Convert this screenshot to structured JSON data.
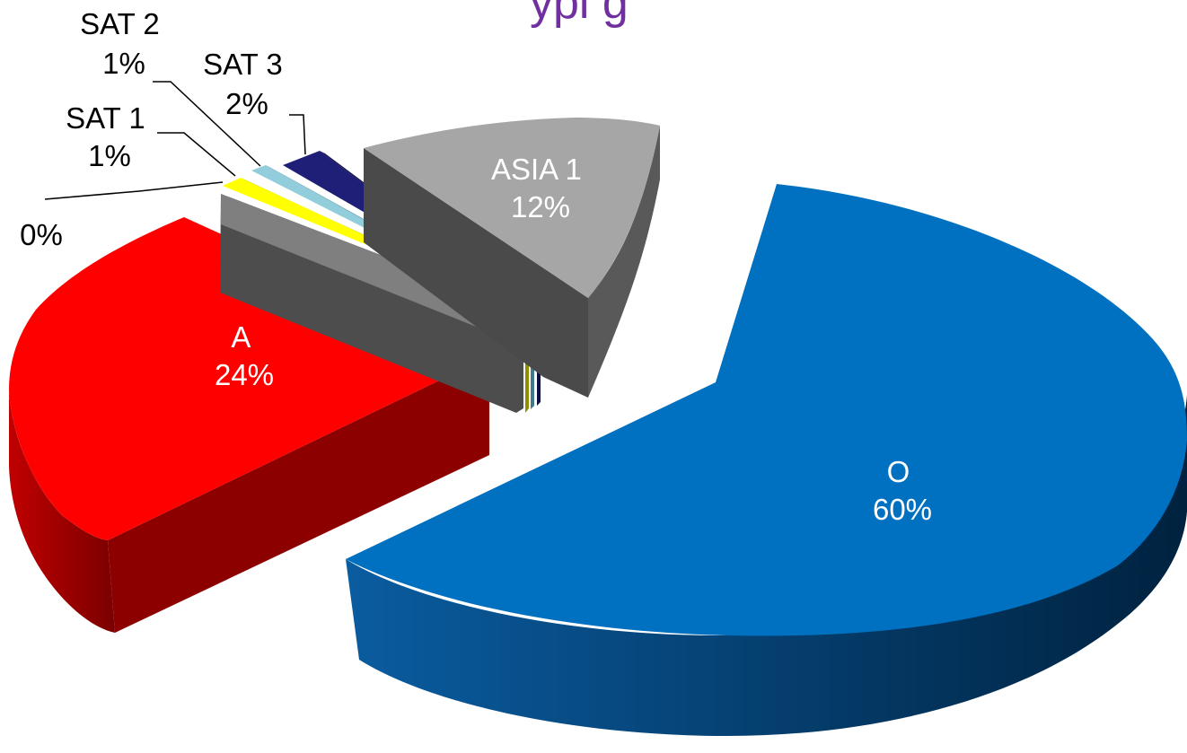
{
  "chart_data": {
    "type": "pie",
    "style": "3d-exploded",
    "slices": [
      {
        "label": "O",
        "value": 60,
        "value_text": "60%",
        "color": "#0070C0",
        "side_color": "#003A66",
        "label_color": "#ffffff"
      },
      {
        "label": "A",
        "value": 24,
        "value_text": "24%",
        "color": "#FF0000",
        "side_color": "#950000",
        "label_color": "#ffffff"
      },
      {
        "label": "",
        "value": 0,
        "value_text": "0%",
        "color": "#7F7F7F",
        "side_color": "#4D4D4D",
        "label_color": "#000000"
      },
      {
        "label": "SAT 1",
        "value": 1,
        "value_text": "1%",
        "color": "#FFFF00",
        "side_color": "#A6A600",
        "label_color": "#000000"
      },
      {
        "label": "SAT 2",
        "value": 1,
        "value_text": "1%",
        "color": "#92CDDC",
        "side_color": "#4E8A99",
        "label_color": "#000000"
      },
      {
        "label": "SAT 3",
        "value": 2,
        "value_text": "2%",
        "color": "#1F1F78",
        "side_color": "#10103F",
        "label_color": "#000000"
      },
      {
        "label": "ASIA 1",
        "value": 12,
        "value_text": "12%",
        "color": "#A6A6A6",
        "side_color": "#555555",
        "label_color": "#ffffff"
      }
    ],
    "title_fragment": "ypi g",
    "title_color": "#7030A0"
  }
}
